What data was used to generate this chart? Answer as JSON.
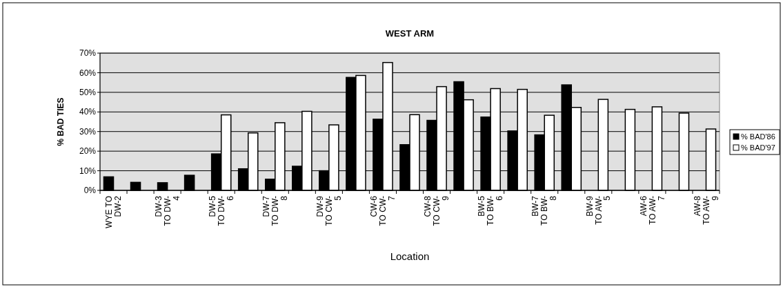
{
  "chart_data": {
    "type": "bar",
    "title": "WEST ARM",
    "xlabel": "Location",
    "ylabel": "% BAD TIES",
    "categories": [
      "WYE TO DW-2",
      null,
      "DW-3 TO DW-4",
      null,
      "DW-5 TO DW-6",
      null,
      "DW-7 TO DW-8",
      null,
      "DW-9 TO CW-5",
      null,
      "CW-6 TO CW-7",
      null,
      "CW-8 TO CW-9",
      null,
      "BW-5 TO BW-6",
      null,
      "BW-7 TO BW-8",
      null,
      "BW-9 TO AW-5",
      null,
      "AW-6 TO AW-7",
      null,
      "AW-8 TO AW-9"
    ],
    "series": [
      {
        "name": "% BAD'86",
        "color": "#000000",
        "values": [
          6.9,
          4.1,
          3.9,
          7.7,
          18.6,
          11.0,
          5.7,
          12.3,
          10.0,
          57.6,
          36.3,
          23.3,
          35.7,
          55.4,
          37.4,
          30.3,
          28.3,
          53.8,
          null,
          null,
          null,
          null,
          null
        ]
      },
      {
        "name": "% BAD'97",
        "color": "#ffffff",
        "values": [
          null,
          null,
          null,
          null,
          38.5,
          29.3,
          34.5,
          40.3,
          33.4,
          58.6,
          65.2,
          38.6,
          52.9,
          46.2,
          51.9,
          51.5,
          38.3,
          42.3,
          46.4,
          41.3,
          42.6,
          39.4,
          31.3
        ]
      }
    ],
    "ylim": [
      0,
      70
    ],
    "yticks": [
      {
        "value": 0,
        "label": "0%"
      },
      {
        "value": 10,
        "label": "10%"
      },
      {
        "value": 20,
        "label": "20%"
      },
      {
        "value": 30,
        "label": "30%"
      },
      {
        "value": 40,
        "label": "40%"
      },
      {
        "value": 50,
        "label": "50%"
      },
      {
        "value": 60,
        "label": "60%"
      },
      {
        "value": 70,
        "label": "70%"
      }
    ],
    "grid": "y",
    "legend": "right"
  }
}
